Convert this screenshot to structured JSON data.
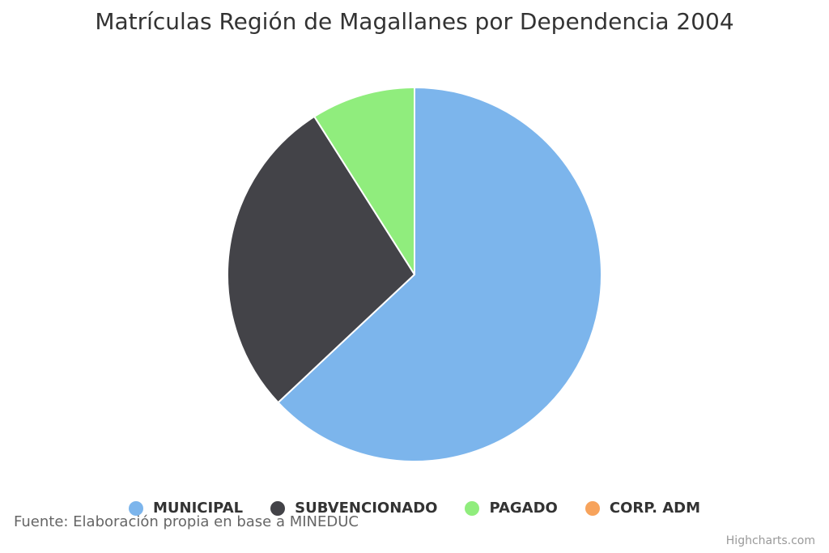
{
  "chart_data": {
    "type": "pie",
    "title": "Matrículas Región de Magallanes por Dependencia 2004",
    "categories": [
      "MUNICIPAL",
      "SUBVENCIONADO",
      "PAGADO",
      "CORP. ADM"
    ],
    "values": [
      63,
      28,
      9,
      0
    ],
    "colors": [
      "#7cb5ec",
      "#434348",
      "#90ed7d",
      "#f7a35c"
    ],
    "legend_position": "bottom"
  },
  "caption": "Fuente: Elaboración propia en base a MINEDUC",
  "credits": "Highcharts.com"
}
